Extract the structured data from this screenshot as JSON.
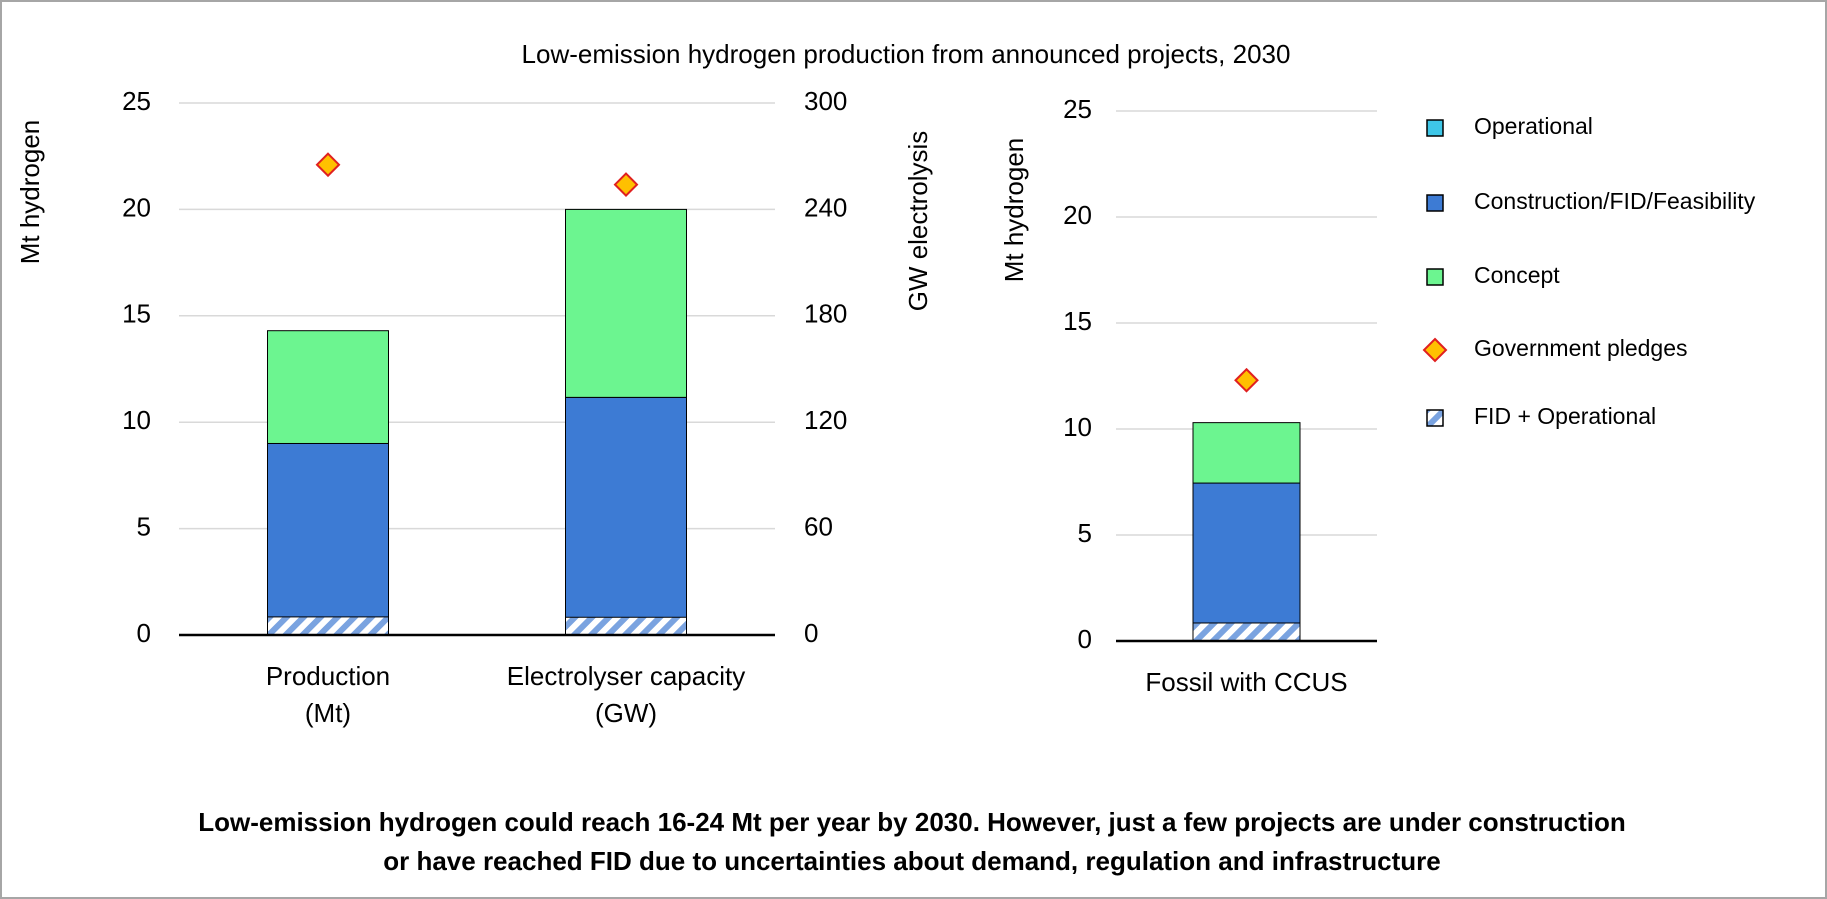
{
  "title": "Low-emission hydrogen production from announced projects, 2030",
  "caption": [
    "Low-emission hydrogen could reach 16-24 Mt per year by 2030. However, just a few projects are under construction",
    "or have reached FID due to uncertainties about demand, regulation and infrastructure"
  ],
  "chart_data": [
    {
      "type": "bar",
      "stacked": true,
      "categories": [
        "Production (Mt)",
        "Electrolyser capacity (GW)"
      ],
      "category_axes": [
        "y",
        "y2"
      ],
      "ylabel": "Mt hydrogen",
      "y2label": "GW electrolysis",
      "ylim": [
        0,
        25
      ],
      "yticks": [
        0,
        5,
        10,
        15,
        20,
        25
      ],
      "y2lim": [
        0,
        300
      ],
      "y2ticks": [
        0,
        60,
        120,
        180,
        240,
        300
      ],
      "grid": true,
      "series": [
        {
          "name": "Operational",
          "color": "#3ec7e8",
          "style": "stack",
          "values": [
            0.1,
            0.7
          ]
        },
        {
          "name": "Construction/FID/Feasibility",
          "color": "#3d7bd4",
          "style": "stack",
          "values": [
            8.9,
            133.3
          ]
        },
        {
          "name": "Concept",
          "color": "#6cf590",
          "style": "stack",
          "values": [
            5.3,
            106
          ]
        },
        {
          "name": "Government pledges",
          "color": "#ffc000",
          "style": "diamond",
          "values": [
            22.1,
            254
          ]
        },
        {
          "name": "FID + Operational",
          "color": "#7aa3e0",
          "style": "hatch",
          "values": [
            0.85,
            10
          ]
        }
      ]
    },
    {
      "type": "bar",
      "stacked": true,
      "categories": [
        "Fossil with CCUS"
      ],
      "ylabel": "Mt hydrogen",
      "ylim": [
        0,
        25
      ],
      "yticks": [
        0,
        5,
        10,
        15,
        20,
        25
      ],
      "grid": true,
      "legend": "right",
      "series": [
        {
          "name": "Operational",
          "color": "#3ec7e8",
          "style": "stack",
          "values": [
            0.6
          ]
        },
        {
          "name": "Construction/FID/Feasibility",
          "color": "#3d7bd4",
          "style": "stack",
          "values": [
            6.85
          ]
        },
        {
          "name": "Concept",
          "color": "#6cf590",
          "style": "stack",
          "values": [
            2.85
          ]
        },
        {
          "name": "Government pledges",
          "color": "#ffc000",
          "style": "diamond",
          "values": [
            12.3
          ]
        },
        {
          "name": "FID + Operational",
          "color": "#7aa3e0",
          "style": "hatch",
          "values": [
            0.85
          ]
        }
      ]
    }
  ]
}
